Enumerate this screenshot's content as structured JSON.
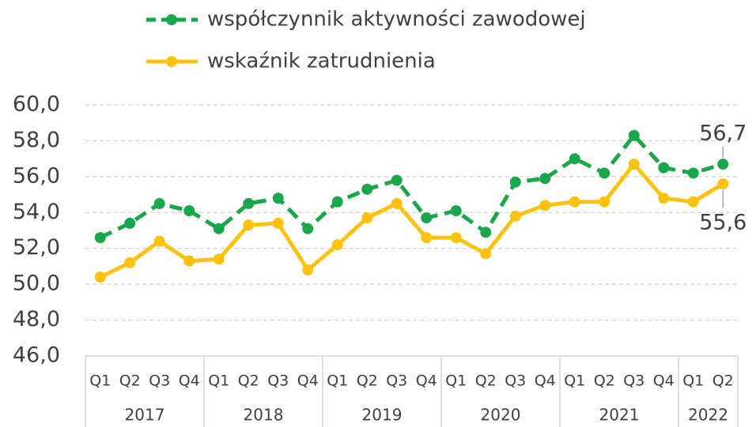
{
  "chart_data": {
    "type": "line",
    "categories": [
      "Q1",
      "Q2",
      "Q3",
      "Q4",
      "Q1",
      "Q2",
      "Q3",
      "Q4",
      "Q1",
      "Q2",
      "Q3",
      "Q4",
      "Q1",
      "Q2",
      "Q3",
      "Q4",
      "Q1",
      "Q2",
      "Q3",
      "Q4",
      "Q1",
      "Q2"
    ],
    "groups": [
      {
        "label": "2017",
        "span": 4
      },
      {
        "label": "2018",
        "span": 4
      },
      {
        "label": "2019",
        "span": 4
      },
      {
        "label": "2020",
        "span": 4
      },
      {
        "label": "2021",
        "span": 4
      },
      {
        "label": "2022",
        "span": 2
      }
    ],
    "series": [
      {
        "name": "współczynnik aktywności zawodowej",
        "color": "#1aa64b",
        "dashed": true,
        "values": [
          52.6,
          53.4,
          54.5,
          54.1,
          53.1,
          54.5,
          54.8,
          53.1,
          54.6,
          55.3,
          55.8,
          53.7,
          54.1,
          52.9,
          55.7,
          55.9,
          57.0,
          56.2,
          58.3,
          56.5,
          56.2,
          56.7
        ],
        "value_labels": [
          null,
          null,
          null,
          null,
          null,
          null,
          null,
          null,
          null,
          null,
          null,
          null,
          null,
          null,
          null,
          null,
          null,
          null,
          null,
          null,
          null,
          "56,7"
        ]
      },
      {
        "name": "wskaźnik zatrudnienia",
        "color": "#fcc20f",
        "dashed": false,
        "values": [
          50.4,
          51.2,
          52.4,
          51.3,
          51.4,
          53.3,
          53.4,
          50.8,
          52.2,
          53.7,
          54.5,
          52.6,
          52.6,
          51.7,
          53.8,
          54.4,
          54.6,
          54.6,
          56.7,
          54.8,
          54.6,
          55.6
        ],
        "value_labels": [
          null,
          null,
          null,
          null,
          null,
          null,
          null,
          null,
          null,
          null,
          null,
          null,
          null,
          null,
          null,
          null,
          null,
          null,
          null,
          null,
          null,
          "55,6"
        ]
      }
    ],
    "ylim": [
      46,
      60
    ],
    "yticks": [
      {
        "value": 46,
        "label": "46,0"
      },
      {
        "value": 48,
        "label": "48,0"
      },
      {
        "value": 50,
        "label": "50,0"
      },
      {
        "value": 52,
        "label": "52,0"
      },
      {
        "value": 54,
        "label": "54,0"
      },
      {
        "value": 56,
        "label": "56,0"
      },
      {
        "value": 58,
        "label": "58,0"
      },
      {
        "value": 60,
        "label": "60,0"
      }
    ],
    "grid": true,
    "legend": "top"
  }
}
